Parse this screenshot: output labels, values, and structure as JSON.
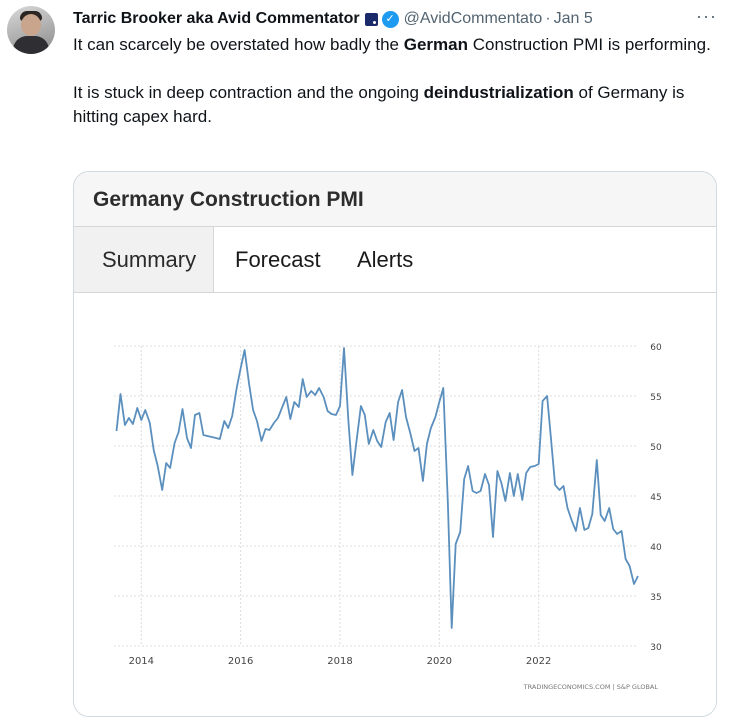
{
  "tweet": {
    "author_name": "Tarric Brooker aka Avid Commentator",
    "handle": "@AvidCommentato",
    "separator": "·",
    "date": "Jan 5",
    "more_label": "···",
    "text_p1_before": "It can scarcely be overstated how badly the ",
    "text_p1_bold": "German",
    "text_p1_after": " Construction PMI is performing.",
    "text_p2_before": "It is stuck in deep contraction and the ongoing ",
    "text_p2_bold": "deindustrialization",
    "text_p2_after": " of Germany is hitting capex hard."
  },
  "card": {
    "title": "Germany Construction PMI",
    "tabs": [
      {
        "label": "Summary",
        "active": true
      },
      {
        "label": "Forecast",
        "active": false
      },
      {
        "label": "Alerts",
        "active": false
      }
    ],
    "source": "TRADINGECONOMICS.COM | S&P GLOBAL"
  },
  "colors": {
    "line": "#5b8fbd",
    "accent": "#1d9bf0",
    "grid": "#dcdcdc"
  },
  "chart_data": {
    "type": "line",
    "title": "",
    "xlabel": "",
    "ylabel": "",
    "xlim": [
      2013.45,
      2024.0
    ],
    "ylim": [
      30,
      60
    ],
    "x_ticks": [
      2014,
      2016,
      2018,
      2020,
      2022
    ],
    "y_ticks": [
      30,
      35,
      40,
      45,
      50,
      55,
      60
    ],
    "grid": true,
    "y_axis_side": "right",
    "series": [
      {
        "name": "",
        "points": [
          [
            2013.5,
            51.5
          ],
          [
            2013.58,
            55.2
          ],
          [
            2013.67,
            52.1
          ],
          [
            2013.75,
            52.8
          ],
          [
            2013.83,
            52.2
          ],
          [
            2013.92,
            53.8
          ],
          [
            2014.0,
            52.6
          ],
          [
            2014.08,
            53.6
          ],
          [
            2014.17,
            52.3
          ],
          [
            2014.25,
            49.6
          ],
          [
            2014.33,
            48.0
          ],
          [
            2014.42,
            45.6
          ],
          [
            2014.5,
            48.3
          ],
          [
            2014.58,
            47.8
          ],
          [
            2014.67,
            50.3
          ],
          [
            2014.75,
            51.4
          ],
          [
            2014.83,
            53.7
          ],
          [
            2014.92,
            50.8
          ],
          [
            2015.0,
            49.8
          ],
          [
            2015.08,
            53.1
          ],
          [
            2015.17,
            53.3
          ],
          [
            2015.25,
            51.1
          ],
          [
            2015.33,
            51.0
          ],
          [
            2015.42,
            50.9
          ],
          [
            2015.5,
            50.8
          ],
          [
            2015.58,
            50.7
          ],
          [
            2015.67,
            52.5
          ],
          [
            2015.75,
            51.8
          ],
          [
            2015.83,
            53.0
          ],
          [
            2015.92,
            55.8
          ],
          [
            2016.0,
            57.8
          ],
          [
            2016.08,
            59.6
          ],
          [
            2016.17,
            56.2
          ],
          [
            2016.25,
            53.6
          ],
          [
            2016.33,
            52.5
          ],
          [
            2016.42,
            50.5
          ],
          [
            2016.5,
            51.7
          ],
          [
            2016.58,
            51.6
          ],
          [
            2016.67,
            52.3
          ],
          [
            2016.75,
            52.8
          ],
          [
            2016.83,
            53.8
          ],
          [
            2016.92,
            54.9
          ],
          [
            2017.0,
            52.7
          ],
          [
            2017.08,
            54.4
          ],
          [
            2017.17,
            53.9
          ],
          [
            2017.25,
            56.7
          ],
          [
            2017.33,
            54.9
          ],
          [
            2017.42,
            55.5
          ],
          [
            2017.5,
            55.1
          ],
          [
            2017.58,
            55.8
          ],
          [
            2017.67,
            54.9
          ],
          [
            2017.75,
            53.5
          ],
          [
            2017.83,
            53.2
          ],
          [
            2017.92,
            53.1
          ],
          [
            2018.0,
            54.0
          ],
          [
            2018.08,
            59.8
          ],
          [
            2018.17,
            52.5
          ],
          [
            2018.25,
            47.1
          ],
          [
            2018.33,
            50.4
          ],
          [
            2018.42,
            54.0
          ],
          [
            2018.5,
            53.1
          ],
          [
            2018.58,
            50.2
          ],
          [
            2018.67,
            51.6
          ],
          [
            2018.75,
            50.5
          ],
          [
            2018.83,
            49.9
          ],
          [
            2018.92,
            52.4
          ],
          [
            2019.0,
            53.3
          ],
          [
            2019.08,
            50.6
          ],
          [
            2019.17,
            54.4
          ],
          [
            2019.25,
            55.6
          ],
          [
            2019.33,
            52.9
          ],
          [
            2019.42,
            51.2
          ],
          [
            2019.5,
            49.5
          ],
          [
            2019.58,
            49.8
          ],
          [
            2019.67,
            46.5
          ],
          [
            2019.75,
            50.2
          ],
          [
            2019.83,
            51.8
          ],
          [
            2019.92,
            52.9
          ],
          [
            2020.0,
            54.4
          ],
          [
            2020.08,
            55.8
          ],
          [
            2020.17,
            44.5
          ],
          [
            2020.25,
            31.8
          ],
          [
            2020.33,
            40.2
          ],
          [
            2020.42,
            41.4
          ],
          [
            2020.5,
            46.7
          ],
          [
            2020.58,
            48.0
          ],
          [
            2020.67,
            45.5
          ],
          [
            2020.75,
            45.3
          ],
          [
            2020.83,
            45.5
          ],
          [
            2020.92,
            47.2
          ],
          [
            2021.0,
            46.1
          ],
          [
            2021.08,
            40.9
          ],
          [
            2021.17,
            47.5
          ],
          [
            2021.25,
            46.3
          ],
          [
            2021.33,
            44.5
          ],
          [
            2021.42,
            47.3
          ],
          [
            2021.5,
            45.0
          ],
          [
            2021.58,
            47.2
          ],
          [
            2021.67,
            44.6
          ],
          [
            2021.75,
            47.3
          ],
          [
            2021.83,
            47.9
          ],
          [
            2021.92,
            48.0
          ],
          [
            2022.0,
            48.2
          ],
          [
            2022.08,
            54.5
          ],
          [
            2022.17,
            55.0
          ],
          [
            2022.25,
            50.6
          ],
          [
            2022.33,
            46.1
          ],
          [
            2022.42,
            45.6
          ],
          [
            2022.5,
            46.0
          ],
          [
            2022.58,
            43.8
          ],
          [
            2022.67,
            42.5
          ],
          [
            2022.75,
            41.5
          ],
          [
            2022.83,
            43.8
          ],
          [
            2022.92,
            41.6
          ],
          [
            2023.0,
            41.8
          ],
          [
            2023.08,
            43.2
          ],
          [
            2023.17,
            48.6
          ],
          [
            2023.25,
            43.1
          ],
          [
            2023.33,
            42.5
          ],
          [
            2023.42,
            43.8
          ],
          [
            2023.5,
            41.7
          ],
          [
            2023.58,
            41.2
          ],
          [
            2023.67,
            41.5
          ],
          [
            2023.75,
            38.7
          ],
          [
            2023.83,
            38.0
          ],
          [
            2023.92,
            36.2
          ],
          [
            2024.0,
            37.0
          ]
        ]
      }
    ]
  }
}
